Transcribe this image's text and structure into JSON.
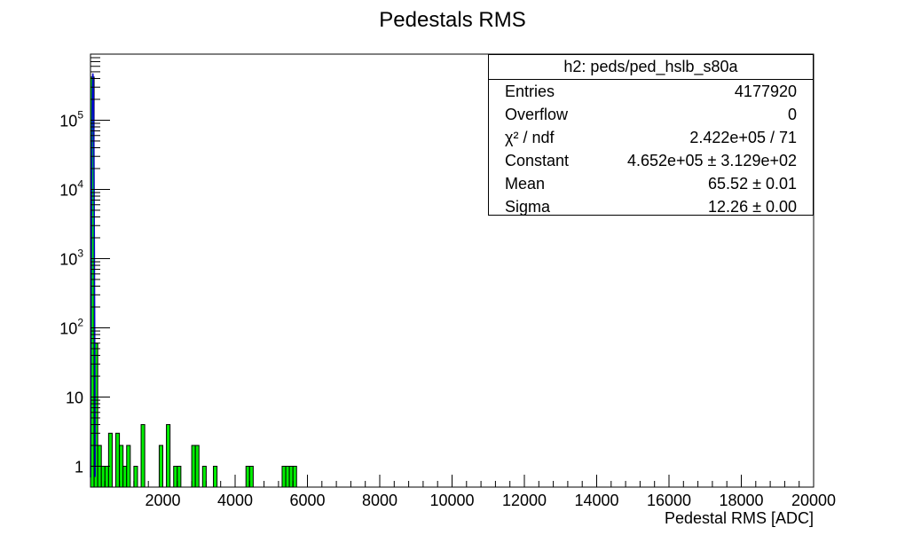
{
  "chart_data": {
    "type": "bar",
    "title": "Pedestals RMS",
    "xlabel": "Pedestal RMS [ADC]",
    "ylabel": "",
    "xlim": [
      0,
      20000
    ],
    "ylim": [
      0.5,
      900000
    ],
    "log_y": true,
    "grid": false,
    "bin_width": 100,
    "x_ticks": [
      2000,
      4000,
      6000,
      8000,
      10000,
      12000,
      14000,
      16000,
      18000,
      20000
    ],
    "y_ticks": [
      {
        "value": 1,
        "label": "1"
      },
      {
        "value": 10,
        "label": "10"
      },
      {
        "value": 100,
        "label": "10",
        "exp": "2"
      },
      {
        "value": 1000,
        "label": "10",
        "exp": "3"
      },
      {
        "value": 10000,
        "label": "10",
        "exp": "4"
      },
      {
        "value": 100000,
        "label": "10",
        "exp": "5"
      }
    ],
    "colors": {
      "fill": "#00ee00",
      "fit_line": "#0000cc",
      "outline": "#000000"
    },
    "series": [
      {
        "bins": [
          {
            "x": 0,
            "y": 420000
          },
          {
            "x": 100,
            "y": 60
          },
          {
            "x": 200,
            "y": 2
          },
          {
            "x": 300,
            "y": 1
          },
          {
            "x": 400,
            "y": 1
          },
          {
            "x": 500,
            "y": 3
          },
          {
            "x": 700,
            "y": 3
          },
          {
            "x": 800,
            "y": 2
          },
          {
            "x": 900,
            "y": 1
          },
          {
            "x": 1000,
            "y": 2
          },
          {
            "x": 1200,
            "y": 1
          },
          {
            "x": 1400,
            "y": 4
          },
          {
            "x": 1900,
            "y": 2
          },
          {
            "x": 2100,
            "y": 4
          },
          {
            "x": 2300,
            "y": 1
          },
          {
            "x": 2400,
            "y": 1
          },
          {
            "x": 2800,
            "y": 2
          },
          {
            "x": 2900,
            "y": 2
          },
          {
            "x": 3100,
            "y": 1
          },
          {
            "x": 3400,
            "y": 1
          },
          {
            "x": 4300,
            "y": 1
          },
          {
            "x": 4400,
            "y": 1
          },
          {
            "x": 5300,
            "y": 1
          },
          {
            "x": 5400,
            "y": 1
          },
          {
            "x": 5500,
            "y": 1
          },
          {
            "x": 5600,
            "y": 1
          }
        ],
        "fit": {
          "constant": 465200,
          "mean": 65.52,
          "sigma": 12.26
        }
      }
    ],
    "stats_box": {
      "title": "h2: peds/ped_hslb_s80a",
      "rows": [
        {
          "label": "Entries",
          "value": "4177920"
        },
        {
          "label": "Overflow",
          "value": "0"
        },
        {
          "label": "χ² / ndf",
          "value": "2.422e+05 / 71"
        },
        {
          "label": "Constant",
          "value": "4.652e+05 ± 3.129e+02"
        },
        {
          "label": "Mean",
          "value": "65.52 ± 0.01"
        },
        {
          "label": "Sigma",
          "value": "12.26 ± 0.00"
        }
      ]
    }
  }
}
